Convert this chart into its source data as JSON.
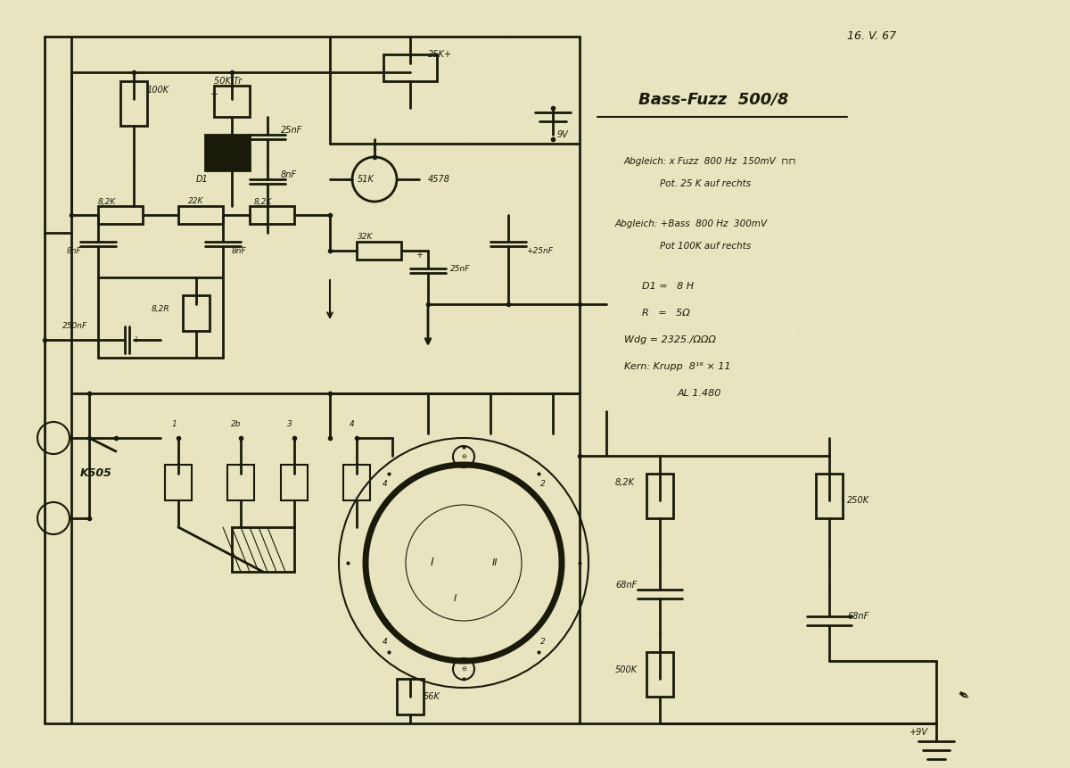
{
  "bg_color": "#e8e4c0",
  "paper_texture": true,
  "title": "Bass-Fuzz 500/8",
  "date": "16. V. 67",
  "annotations": [
    "Abgleich: x Fuzz  800 Hz  150mV□□",
    "Pot. 25 K auf rechts",
    "Abgleich: +Bass  800 Hz  300mV",
    "Pot 100K auf rechts",
    "D1 =  8 H",
    "R  =  5Ω",
    "Wdg = 2325./ΩΩΩ",
    "Kern: Krupp  8⁶ × 11",
    "AL 1.480"
  ],
  "ink_color": "#1a1a0a",
  "line_width": 1.5
}
